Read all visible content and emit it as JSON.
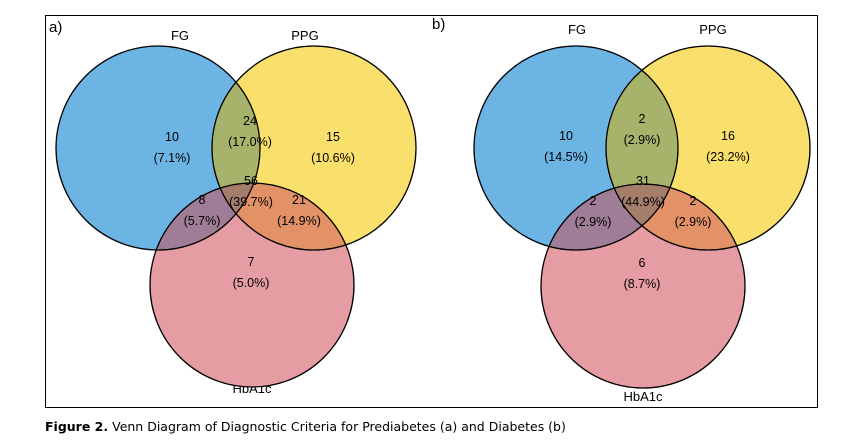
{
  "caption": {
    "prefix": "Figure 2.",
    "text": "Venn Diagram of Diagnostic Criteria for Prediabetes (a) and Diabetes (b)"
  },
  "colors": {
    "FG": "#6cb4e3",
    "PPG": "#f9df6b",
    "HbA1c": "#e69ca3",
    "FG_PPG": "#a7b36a",
    "FG_HbA1c": "#a07d97",
    "PPG_HbA1c": "#e39167",
    "all": "#a47e6a"
  },
  "panels": [
    {
      "id": "a",
      "label": "a)",
      "sets": {
        "FG": "FG",
        "PPG": "PPG",
        "HbA1c": "HbA1c"
      },
      "regions": {
        "FG_only": {
          "count": "10",
          "pct": "(7.1%)"
        },
        "PPG_only": {
          "count": "15",
          "pct": "(10.6%)"
        },
        "HbA1c_only": {
          "count": "7",
          "pct": "(5.0%)"
        },
        "FG_PPG": {
          "count": "24",
          "pct": "(17.0%)"
        },
        "FG_HbA1c": {
          "count": "8",
          "pct": "(5.7%)"
        },
        "PPG_HbA1c": {
          "count": "21",
          "pct": "(14.9%)"
        },
        "all": {
          "count": "56",
          "pct": "(39.7%)"
        }
      }
    },
    {
      "id": "b",
      "label": "b)",
      "sets": {
        "FG": "FG",
        "PPG": "PPG",
        "HbA1c": "HbA1c"
      },
      "regions": {
        "FG_only": {
          "count": "10",
          "pct": "(14.5%)"
        },
        "PPG_only": {
          "count": "16",
          "pct": "(23.2%)"
        },
        "HbA1c_only": {
          "count": "6",
          "pct": "(8.7%)"
        },
        "FG_PPG": {
          "count": "2",
          "pct": "(2.9%)"
        },
        "FG_HbA1c": {
          "count": "2",
          "pct": "(2.9%)"
        },
        "PPG_HbA1c": {
          "count": "2",
          "pct": "(2.9%)"
        },
        "all": {
          "count": "31",
          "pct": "(44.9%)"
        }
      }
    }
  ]
}
